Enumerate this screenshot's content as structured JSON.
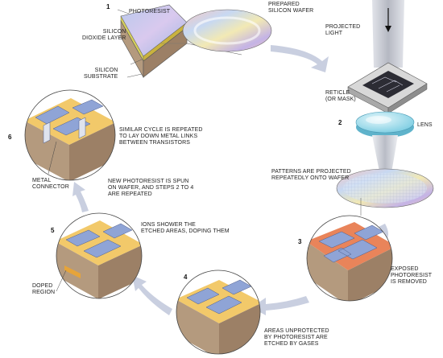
{
  "steps": [
    {
      "number": "1",
      "lines": []
    },
    {
      "number": "2",
      "lines": []
    },
    {
      "number": "3",
      "lines": [
        "EXPOSED",
        "PHOTORESIST",
        "IS REMOVED"
      ]
    },
    {
      "number": "4",
      "lines": [
        "AREAS UNPROTECTED",
        "BY PHOTORESIST ARE",
        "ETCHED BY GASES"
      ]
    },
    {
      "number": "5",
      "lines": [
        "IONS SHOWER THE",
        "ETCHED AREAS, DOPING THEM"
      ]
    },
    {
      "number": "6",
      "lines": [
        "SIMILAR CYCLE IS REPEATED",
        "TO LAY DOWN METAL LINKS",
        "BETWEEN TRANSISTORS"
      ]
    }
  ],
  "labels": {
    "photoresist": [
      "PHOTORESIST"
    ],
    "silicon_dioxide": [
      "SILICON",
      "DIOXIDE LAYER"
    ],
    "silicon_substrate": [
      "SILICON",
      "SUBSTRATE"
    ],
    "prepared_wafer": [
      "PREPARED",
      "SILICON WAFER"
    ],
    "projected_light": [
      "PROJECTED",
      "LIGHT"
    ],
    "reticle": [
      "RETICLE",
      "(OR MASK)"
    ],
    "lens": [
      "LENS"
    ],
    "patterns": [
      "PATTERNS ARE PROJECTED",
      "REPEATEDLY ONTO WAFER"
    ],
    "new_photoresist": [
      "NEW PHOTORESIST IS SPUN",
      "ON WAFER, AND STEPS 2 TO 4",
      "ARE REPEATED"
    ],
    "metal_connector": [
      "METAL",
      "CONNECTOR"
    ],
    "doped_region": [
      "DOPED",
      "REGION"
    ]
  },
  "colors": {
    "arrow": "#c9cfe0",
    "metal": "#8fa4d6",
    "substrate": "#b49a7e",
    "photoresist_exposed": "#e9845a",
    "doped": "#f2c96a",
    "lens": "#a8e0ee"
  }
}
